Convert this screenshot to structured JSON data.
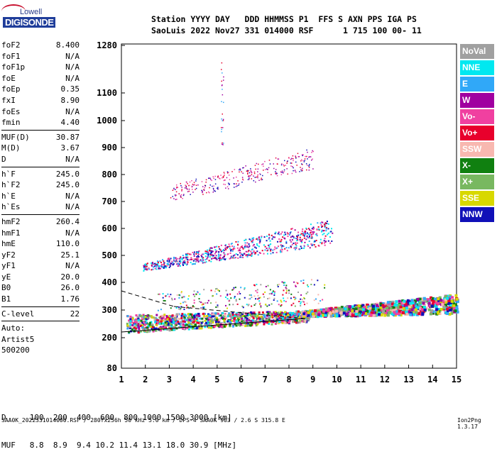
{
  "logo": {
    "top": "Lowell",
    "bottom": "DIGISONDE"
  },
  "header": {
    "line1": "Station YYYY DAY   DDD HHMMSS P1  FFS S AXN PPS IGA PS",
    "line2": "SaoLuis 2022 Nov27 331 014000 RSF      1 715 100 00- 11"
  },
  "params": [
    {
      "k": "foF2",
      "v": "8.400"
    },
    {
      "k": "foF1",
      "v": "N/A"
    },
    {
      "k": "foF1p",
      "v": "N/A"
    },
    {
      "k": "foE",
      "v": "N/A"
    },
    {
      "k": "foEp",
      "v": "0.35"
    },
    {
      "k": "fxI",
      "v": "8.90"
    },
    {
      "k": "foEs",
      "v": "N/A"
    },
    {
      "k": "fmin",
      "v": "4.40"
    },
    {
      "sep": true
    },
    {
      "k": "MUF(D)",
      "v": "30.87"
    },
    {
      "k": "M(D)",
      "v": "3.67"
    },
    {
      "k": "D",
      "v": "N/A"
    },
    {
      "sep": true
    },
    {
      "k": "h`F",
      "v": "245.0"
    },
    {
      "k": "h`F2",
      "v": "245.0"
    },
    {
      "k": "h`E",
      "v": "N/A"
    },
    {
      "k": "h`Es",
      "v": "N/A"
    },
    {
      "sep": true
    },
    {
      "k": "hmF2",
      "v": "260.4"
    },
    {
      "k": "hmF1",
      "v": "N/A"
    },
    {
      "k": "hmE",
      "v": "110.0"
    },
    {
      "k": "yF2",
      "v": "25.1"
    },
    {
      "k": "yF1",
      "v": "N/A"
    },
    {
      "k": "yE",
      "v": "20.0"
    },
    {
      "k": "B0",
      "v": "26.0"
    },
    {
      "k": "B1",
      "v": "1.76"
    },
    {
      "sep": true
    },
    {
      "k": "C-level",
      "v": "22"
    },
    {
      "sep": true
    },
    {
      "k": "Auto:",
      "v": ""
    },
    {
      "k": "Artist5",
      "v": ""
    },
    {
      "k": "500200",
      "v": ""
    }
  ],
  "legend": [
    {
      "label": "NoVal",
      "color": "#a0a0a0"
    },
    {
      "label": "NNE",
      "color": "#00e8f0"
    },
    {
      "label": "E",
      "color": "#30a8f8"
    },
    {
      "label": "W",
      "color": "#a000a0"
    },
    {
      "label": "Vo-",
      "color": "#f040a0"
    },
    {
      "label": "Vo+",
      "color": "#e8002c"
    },
    {
      "label": "SSW",
      "color": "#f8b8b0"
    },
    {
      "label": "X-",
      "color": "#108010"
    },
    {
      "label": "X+",
      "color": "#78b860"
    },
    {
      "label": "SSE",
      "color": "#d8d800"
    },
    {
      "label": "NNW",
      "color": "#1010b8"
    }
  ],
  "axes": {
    "y_ticks": [
      "1280",
      "1100",
      "1000",
      "900",
      "800",
      "700",
      "600",
      "500",
      "400",
      "300",
      "200",
      "80"
    ],
    "x_ticks": [
      "1",
      "2",
      "3",
      "4",
      "5",
      "6",
      "7",
      "8",
      "9",
      "10",
      "11",
      "12",
      "13",
      "14",
      "15"
    ]
  },
  "bottom": {
    "line1": "D     100  200  400  600  800 1000 1500 3000 [km]",
    "line2": "MUF   8.8  8.9  9.4 10.2 11.4 13.1 18.0 30.9 [MHz]"
  },
  "footer": "SAA0K_2022331014000.RSF / 280fx256h 50 kHz 5.0 km / DPS-4 SAA0K 903 / 2.6 S 315.8 E",
  "version": "Ion2Png 1.3.17",
  "chart_data": {
    "type": "scatter",
    "xlim": [
      1,
      15
    ],
    "ylim": [
      80,
      1280
    ],
    "x_ticks": [
      1,
      2,
      3,
      4,
      5,
      6,
      7,
      8,
      9,
      10,
      11,
      12,
      13,
      14,
      15
    ],
    "y_ticks": [
      80,
      200,
      300,
      400,
      500,
      600,
      700,
      800,
      900,
      1000,
      1100,
      1280
    ],
    "series": [
      {
        "name": "NoVal",
        "values": []
      },
      {
        "name": "NNE",
        "values": []
      },
      {
        "name": "E",
        "values": []
      },
      {
        "name": "W",
        "values": []
      },
      {
        "name": "Vo-",
        "values": []
      },
      {
        "name": "Vo+",
        "values": []
      },
      {
        "name": "SSW",
        "values": []
      },
      {
        "name": "X-",
        "values": []
      },
      {
        "name": "X+",
        "values": []
      },
      {
        "name": "SSE",
        "values": []
      },
      {
        "name": "NNW",
        "values": []
      }
    ],
    "bands": [
      {
        "x": [
          1.5,
          8.5
        ],
        "y": [
          275,
          300
        ]
      },
      {
        "x": [
          8.5,
          15
        ],
        "y": [
          300,
          340
        ]
      },
      {
        "x": [
          1.9,
          9.8
        ],
        "y": [
          450,
          630
        ]
      },
      {
        "x": [
          3.0,
          9.0
        ],
        "y": [
          720,
          890
        ]
      }
    ]
  }
}
